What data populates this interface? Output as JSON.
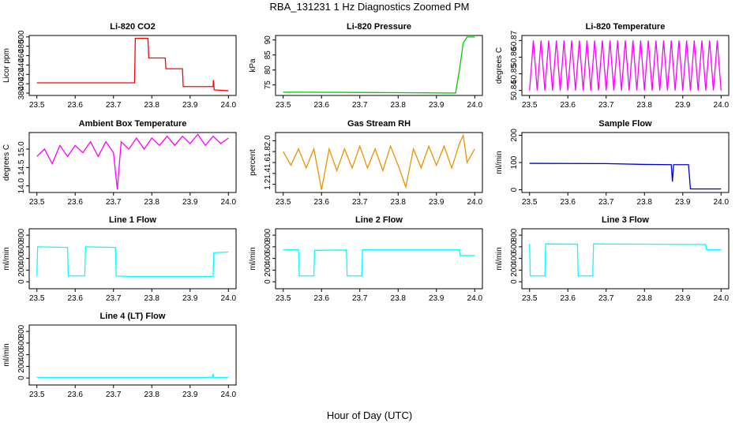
{
  "title": "RBA_131231  1 Hz Diagnostics Zoomed PM",
  "xlabel": "Hour of Day (UTC)",
  "chart_data": [
    {
      "type": "line",
      "title": "Li-820 CO2",
      "ylabel": "Licor ppm",
      "color": "#ff0000",
      "x": [
        23.5,
        23.755,
        23.757,
        23.79,
        23.792,
        23.835,
        23.837,
        23.88,
        23.882,
        23.96,
        23.961,
        23.963,
        24.0
      ],
      "values": [
        402,
        402,
        497,
        497,
        455,
        455,
        432,
        432,
        394,
        394,
        408,
        387,
        385
      ],
      "xlim": [
        23.48,
        24.02
      ],
      "xticks": [
        23.5,
        23.6,
        23.7,
        23.8,
        23.9,
        {
          "value": 24,
          "label": "24.0"
        }
      ],
      "ylim": [
        375,
        503
      ],
      "yticks": [
        380,
        400,
        420,
        440,
        460,
        480,
        500
      ]
    },
    {
      "type": "line",
      "title": "Li-820 Pressure",
      "ylabel": "kPa",
      "color": "#00cc00",
      "x": [
        23.5,
        23.7,
        23.95,
        23.96,
        23.97,
        23.98,
        24.0
      ],
      "values": [
        72.6,
        72.5,
        72.3,
        80,
        89,
        91,
        91
      ],
      "xlim": [
        23.48,
        24.02
      ],
      "xticks": [
        23.5,
        23.6,
        23.7,
        23.8,
        23.9,
        {
          "value": 24,
          "label": "24.0"
        }
      ],
      "ylim": [
        71.5,
        91.5
      ],
      "yticks": [
        75,
        80,
        85,
        90
      ]
    },
    {
      "type": "line",
      "title": "Li-820 Temperature",
      "ylabel": "degrees C",
      "color": "#ff00ff",
      "x": [
        23.5,
        23.51,
        23.52,
        23.53,
        23.54,
        23.55,
        23.56,
        23.57,
        23.58,
        23.59,
        23.6,
        23.61,
        23.62,
        23.63,
        23.64,
        23.65,
        23.66,
        23.67,
        23.68,
        23.69,
        23.7,
        23.71,
        23.72,
        23.73,
        23.74,
        23.75,
        23.76,
        23.77,
        23.78,
        23.79,
        23.8,
        23.81,
        23.82,
        23.83,
        23.84,
        23.85,
        23.86,
        23.87,
        23.88,
        23.89,
        23.9,
        23.91,
        23.92,
        23.93,
        23.94,
        23.95,
        23.96,
        23.97,
        23.98,
        23.99,
        24.0
      ],
      "values": [
        50.84,
        50.87,
        50.84,
        50.87,
        50.84,
        50.87,
        50.84,
        50.87,
        50.84,
        50.87,
        50.84,
        50.87,
        50.84,
        50.87,
        50.84,
        50.87,
        50.84,
        50.87,
        50.84,
        50.87,
        50.84,
        50.87,
        50.84,
        50.87,
        50.84,
        50.87,
        50.84,
        50.87,
        50.84,
        50.87,
        50.84,
        50.87,
        50.84,
        50.87,
        50.84,
        50.87,
        50.84,
        50.87,
        50.84,
        50.87,
        50.84,
        50.87,
        50.84,
        50.87,
        50.84,
        50.87,
        50.84,
        50.87,
        50.84,
        50.87,
        50.84
      ],
      "xlim": [
        23.48,
        24.02
      ],
      "xticks": [
        23.5,
        23.6,
        23.7,
        23.8,
        23.9,
        {
          "value": 24,
          "label": "24.0"
        }
      ],
      "ylim": [
        50.837,
        50.873
      ],
      "yticks": [
        50.84,
        50.85,
        50.86,
        50.87
      ]
    },
    {
      "type": "line",
      "title": "Ambient Box Temperature",
      "ylabel": "degrees C",
      "color": "#ff00ff",
      "x": [
        23.5,
        23.52,
        23.54,
        23.56,
        23.58,
        23.6,
        23.62,
        23.64,
        23.66,
        23.68,
        23.7,
        23.71,
        23.72,
        23.74,
        23.76,
        23.78,
        23.8,
        23.82,
        23.84,
        23.86,
        23.88,
        23.9,
        23.92,
        23.94,
        23.96,
        23.98,
        24.0
      ],
      "values": [
        14.8,
        15.0,
        14.6,
        15.1,
        14.8,
        15.1,
        14.9,
        15.2,
        14.8,
        15.2,
        14.9,
        13.9,
        15.2,
        15.0,
        15.3,
        15.0,
        15.3,
        15.1,
        15.35,
        15.1,
        15.35,
        15.15,
        15.4,
        15.1,
        15.35,
        15.15,
        15.3
      ],
      "xlim": [
        23.48,
        24.02
      ],
      "xticks": [
        23.5,
        23.6,
        23.7,
        23.8,
        23.9,
        {
          "value": 24,
          "label": "24.0"
        }
      ],
      "ylim": [
        13.82,
        15.45
      ],
      "yticks": [
        {
          "value": 14,
          "label": "14.0"
        },
        14.5,
        {
          "value": 15,
          "label": "15.0"
        }
      ]
    },
    {
      "type": "line",
      "title": "Gas Stream RH",
      "ylabel": "percent",
      "color": "#e69500",
      "x": [
        23.5,
        23.52,
        23.54,
        23.56,
        23.58,
        23.6,
        23.62,
        23.64,
        23.66,
        23.68,
        23.7,
        23.72,
        23.74,
        23.76,
        23.78,
        23.8,
        23.82,
        23.84,
        23.86,
        23.88,
        23.9,
        23.92,
        23.94,
        23.96,
        23.97,
        23.98,
        24.0
      ],
      "values": [
        1.8,
        1.55,
        1.85,
        1.5,
        1.85,
        1.1,
        1.85,
        1.45,
        1.85,
        1.5,
        1.9,
        1.5,
        1.85,
        1.45,
        1.9,
        1.55,
        1.15,
        1.85,
        1.5,
        1.9,
        1.55,
        1.9,
        1.5,
        1.95,
        2.1,
        1.6,
        1.85
      ],
      "xlim": [
        23.48,
        24.02
      ],
      "xticks": [
        23.5,
        23.6,
        23.7,
        23.8,
        23.9,
        {
          "value": 24,
          "label": "24.0"
        }
      ],
      "ylim": [
        1.05,
        2.15
      ],
      "yticks": [
        1.2,
        1.4,
        1.6,
        1.8,
        {
          "value": 2,
          "label": "2.0"
        }
      ]
    },
    {
      "type": "line",
      "title": "Sample Flow",
      "ylabel": "ml/min",
      "color": "#0000cc",
      "x": [
        23.5,
        23.7,
        23.8,
        23.87,
        23.873,
        23.876,
        23.88,
        23.915,
        23.92,
        24.0
      ],
      "values": [
        97,
        96,
        93,
        92,
        30,
        92,
        92,
        92,
        3,
        3
      ],
      "xlim": [
        23.48,
        24.02
      ],
      "xticks": [
        23.5,
        23.6,
        23.7,
        23.8,
        23.9,
        {
          "value": 24,
          "label": "24.0"
        }
      ],
      "ylim": [
        -10,
        210
      ],
      "yticks": [
        0,
        100,
        200
      ]
    },
    {
      "type": "line",
      "title": "Line 1 Flow",
      "ylabel": "ml/min",
      "color": "#00ffff",
      "x": [
        23.5,
        23.502,
        23.58,
        23.582,
        23.625,
        23.627,
        23.705,
        23.707,
        23.75,
        23.96,
        23.962,
        24.0
      ],
      "values": [
        100,
        600,
        590,
        100,
        100,
        600,
        590,
        100,
        90,
        90,
        500,
        510
      ],
      "xlim": [
        23.48,
        24.02
      ],
      "xticks": [
        23.5,
        23.6,
        23.7,
        23.8,
        23.9,
        {
          "value": 24,
          "label": "24.0"
        }
      ],
      "ylim": [
        -120,
        910
      ],
      "yticks": [
        0,
        200,
        400,
        600,
        800
      ]
    },
    {
      "type": "line",
      "title": "Line 2 Flow",
      "ylabel": "ml/min",
      "color": "#00ffff",
      "x": [
        23.5,
        23.54,
        23.542,
        23.58,
        23.582,
        23.665,
        23.667,
        23.705,
        23.707,
        23.96,
        23.962,
        24.0
      ],
      "values": [
        550,
        550,
        100,
        100,
        540,
        545,
        100,
        100,
        550,
        550,
        450,
        450
      ],
      "xlim": [
        23.48,
        24.02
      ],
      "xticks": [
        23.5,
        23.6,
        23.7,
        23.8,
        23.9,
        {
          "value": 24,
          "label": "24.0"
        }
      ],
      "ylim": [
        -120,
        910
      ],
      "yticks": [
        0,
        200,
        400,
        600,
        800
      ]
    },
    {
      "type": "line",
      "title": "Line 3 Flow",
      "ylabel": "ml/min",
      "color": "#00ffff",
      "x": [
        23.5,
        23.502,
        23.54,
        23.542,
        23.625,
        23.627,
        23.665,
        23.667,
        23.96,
        23.962,
        24.0
      ],
      "values": [
        650,
        100,
        100,
        650,
        645,
        100,
        100,
        650,
        640,
        550,
        550
      ],
      "xlim": [
        23.48,
        24.02
      ],
      "xticks": [
        23.5,
        23.6,
        23.7,
        23.8,
        23.9,
        {
          "value": 24,
          "label": "24.0"
        }
      ],
      "ylim": [
        -120,
        910
      ],
      "yticks": [
        0,
        200,
        400,
        600,
        800
      ]
    },
    {
      "type": "line",
      "title": "Line 4 (LT) Flow",
      "ylabel": "ml/min",
      "color": "#00ffff",
      "x": [
        23.5,
        23.958,
        23.96,
        23.962,
        24.0
      ],
      "values": [
        10,
        10,
        60,
        10,
        10
      ],
      "xlim": [
        23.48,
        24.02
      ],
      "xticks": [
        23.5,
        23.6,
        23.7,
        23.8,
        23.9,
        {
          "value": 24,
          "label": "24.0"
        }
      ],
      "ylim": [
        -120,
        910
      ],
      "yticks": [
        0,
        200,
        400,
        600,
        800
      ]
    }
  ]
}
